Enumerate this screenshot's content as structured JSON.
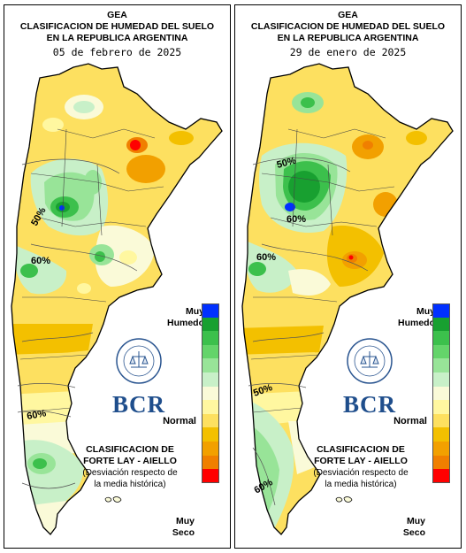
{
  "colors": {
    "muy_humedo": "#0030ff",
    "humedo_dark": "#18a030",
    "humedo_mid": "#3cc04c",
    "humedo_light": "#8fe08f",
    "normal_plus": "#d2f2d2",
    "normal": "#fafad8",
    "seco_light": "#fff7a0",
    "seco": "#fde060",
    "seco_mid": "#f3c000",
    "seco_dark": "#f2a000",
    "muy_seco_orange": "#f07f00",
    "muy_seco": "#ff0000"
  },
  "legend_colors": [
    "#0030ff",
    "#18a030",
    "#3cc04c",
    "#64d46a",
    "#98e498",
    "#c8f0c8",
    "#fafad8",
    "#fff7a0",
    "#fde060",
    "#f3c000",
    "#f2a000",
    "#f07f00",
    "#ff0000"
  ],
  "panels": [
    {
      "title_line1": "GEA",
      "title_line2": "CLASIFICACION DE HUMEDAD DEL SUELO",
      "title_line3": "EN LA REPUBLICA ARGENTINA",
      "date": "05 de febrero de 2025",
      "contour_labels": [
        "50%",
        "60%",
        "60%"
      ],
      "legend_top": "Muy Humedo",
      "legend_middle": "Normal",
      "legend_bottom": "Muy Seco",
      "logo_text": "BCR",
      "seal_text": "BOLSA DE COMERCIO DE ROSARIO",
      "method_title": "CLASIFICACION DE FORTE LAY - AIELLO",
      "method_note": "(Desviación respecto de la media histórica)"
    },
    {
      "title_line1": "GEA",
      "title_line2": "CLASIFICACION DE HUMEDAD DEL SUELO",
      "title_line3": "EN LA REPUBLICA ARGENTINA",
      "date": "29 de enero de 2025",
      "contour_labels": [
        "50%",
        "60%",
        "60%",
        "50%",
        "60%"
      ],
      "legend_top": "Muy Humedo",
      "legend_middle": "Normal",
      "legend_bottom": "Muy Seco",
      "logo_text": "BCR",
      "seal_text": "BOLSA DE COMERCIO DE ROSARIO",
      "method_title": "CLASIFICACION DE FORTE LAY - AIELLO",
      "method_note": "(Desviación respecto de la media histórica)"
    }
  ]
}
